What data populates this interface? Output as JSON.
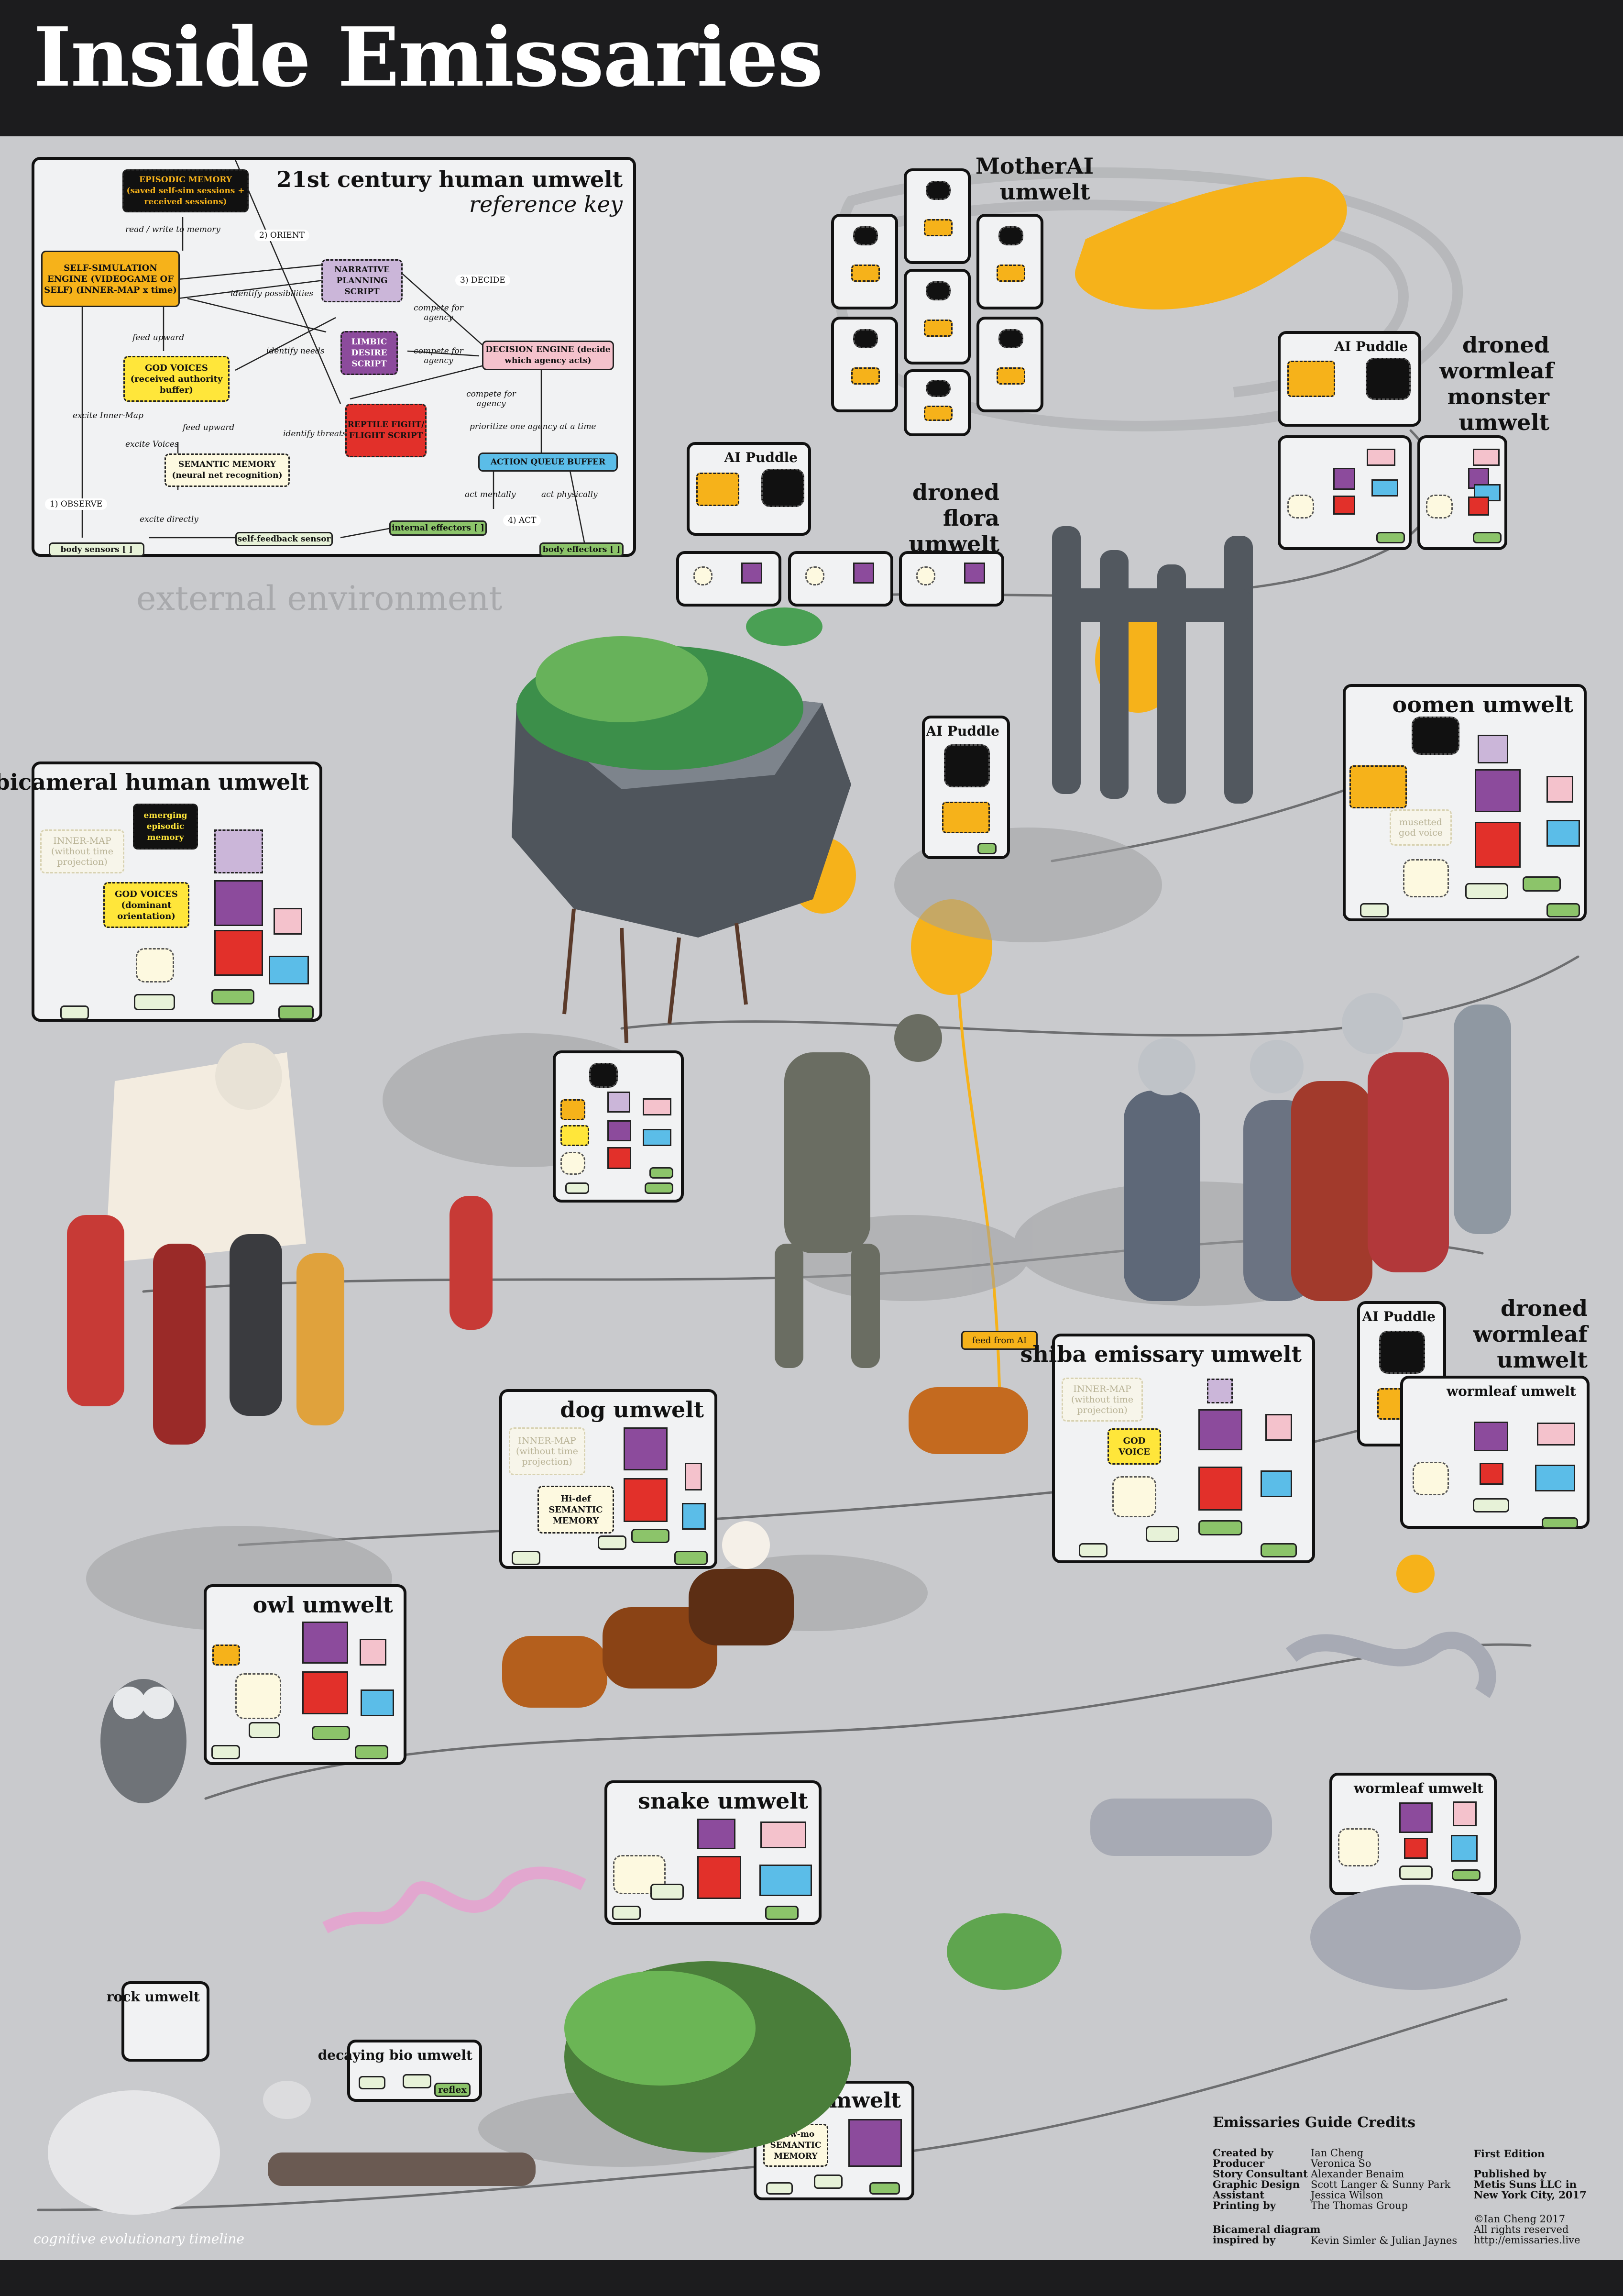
{
  "title": "Inside Emissaries",
  "environment_label": "external environment",
  "timeline_label": "cognitive evolutionary timeline",
  "reference_key": {
    "title": "21st century human umwelt",
    "subtitle": "reference key",
    "nodes": {
      "episodic": "EPISODIC MEMORY (saved self-sim sessions + received sessions)",
      "selfsim": "SELF-SIMULATION ENGINE (VIDEOGAME OF SELF) (INNER-MAP x time)",
      "narrative": "NARRATIVE PLANNING SCRIPT",
      "limbic": "LIMBIC DESIRE SCRIPT",
      "decision": "DECISION ENGINE (decide which agency acts)",
      "godvoices": "GOD VOICES (received authority buffer)",
      "reptile": "REPTILE FIGHT/ FLIGHT SCRIPT",
      "semantic": "SEMANTIC MEMORY (neural net recognition)",
      "queue": "ACTION QUEUE BUFFER",
      "internal": "internal effectors [ ]",
      "feedback": "self-feedback sensor",
      "body_sensors": "body sensors [ ]",
      "body_effectors": "body effectors [ ]"
    },
    "labels": {
      "readwrite": "read / write to memory",
      "orient": "2) ORIENT",
      "decide": "3) DECIDE",
      "identify_poss": "identify possibilities",
      "compete1": "compete for agency",
      "identify_needs": "identify needs",
      "compete2": "compete for agency",
      "feed_upward1": "feed upward",
      "compete3": "compete for agency",
      "excite_inner": "excite Inner-Map",
      "feed_upward2": "feed upward",
      "identify_threats": "identify threats",
      "excite_voices": "excite Voices",
      "prioritize": "prioritize one agency at a time",
      "observe": "1) OBSERVE",
      "act_mentally": "act mentally",
      "act_physically": "act physically",
      "excite_directly": "excite directly",
      "act": "4) ACT"
    }
  },
  "panels": {
    "motherai": "MotherAI umwelt",
    "ai_puddle": "AI Puddle",
    "droned_flora": "droned flora umwelt",
    "droned_wormleaf_monster": "droned wormleaf monster umwelt",
    "oomen": "oomen umwelt",
    "musetted": "musetted god voice",
    "bicameral": "bicameral human umwelt",
    "bic_emerging": "emerging episodic memory",
    "bic_inner": "INNER-MAP (without time projection)",
    "bic_god": "GOD VOICES (dominant orientation)",
    "dog": "dog umwelt",
    "dog_inner": "INNER-MAP (without time projection)",
    "dog_semantic": "Hi-def SEMANTIC MEMORY",
    "shiba": "shiba emissary umwelt",
    "shiba_inner": "INNER-MAP (without time projection)",
    "shiba_god": "GOD VOICE",
    "feed_from_ai": "feed from AI",
    "droned_wormleaf": "droned wormleaf umwelt",
    "wormleaf": "wormleaf umwelt",
    "owl": "owl umwelt",
    "snake": "snake umwelt",
    "rock": "rock umwelt",
    "decaying": "decaying bio umwelt",
    "reflex": "reflex",
    "plant": "plant umwelt",
    "plant_semantic": "slow-mo SEMANTIC MEMORY"
  },
  "credits": {
    "heading": "Emissaries Guide Credits",
    "roles": [
      "Created by",
      "Producer",
      "Story Consultant",
      "Graphic Design",
      "Assistant",
      "Printing by"
    ],
    "names": [
      "Ian Cheng",
      "Veronica So",
      "Alexander Benaim",
      "Scott Langer & Sunny Park",
      "Jessica Wilson",
      "The Thomas Group"
    ],
    "edition": "First Edition",
    "published": [
      "Published by",
      "Metis Suns LLC in",
      "New York City, 2017"
    ],
    "inspired_role": [
      "Bicameral diagram",
      "inspired by"
    ],
    "inspired_names": "Kevin Simler & Julian Jaynes",
    "copyright": [
      "©Ian Cheng 2017",
      "All rights reserved",
      "http://emissaries.live"
    ]
  },
  "colors": {
    "header": "#1c1c1e",
    "background": "#c9cacd",
    "yellow": "#f6b21a",
    "god_yellow": "#ffe63a",
    "purple": "#8c4b9c",
    "lavender": "#cbb6d9",
    "red": "#e2302a",
    "pink": "#f4c2cc",
    "blue": "#5bbde8",
    "green": "#8cc46a",
    "cream": "#fdf9e0"
  }
}
